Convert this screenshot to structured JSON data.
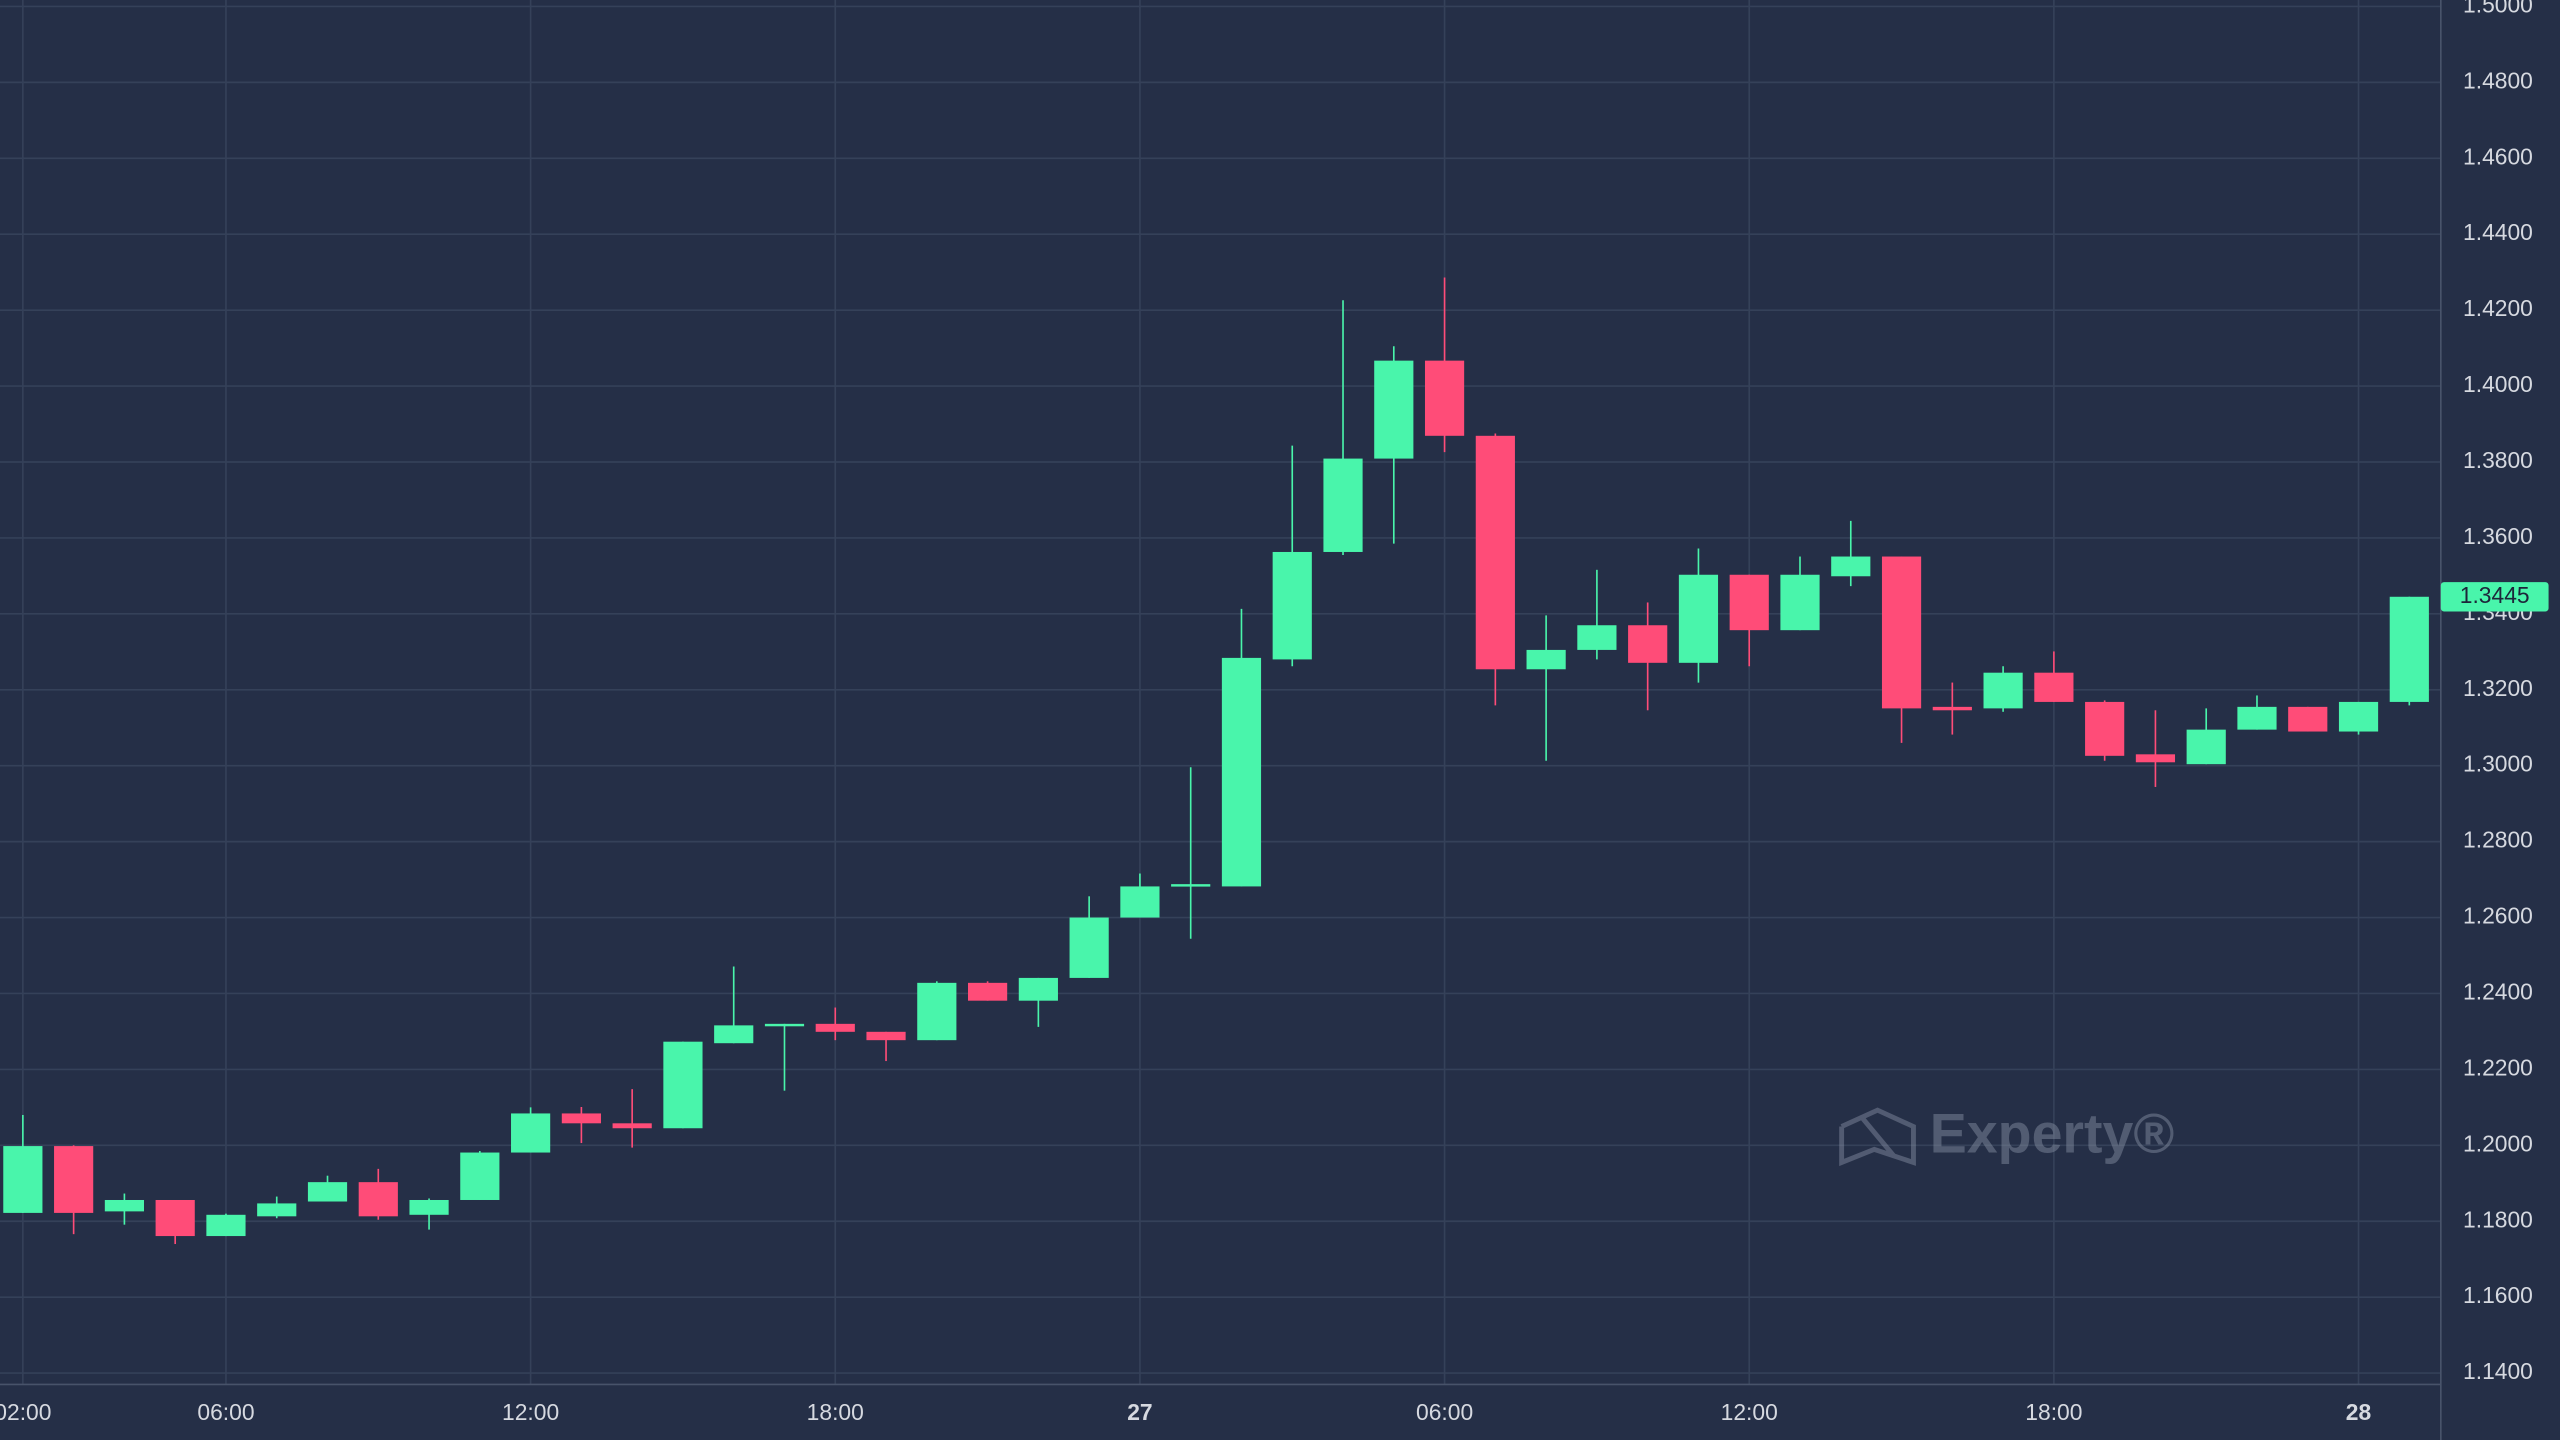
{
  "chart_data": {
    "type": "candlestick",
    "categories": [
      "02:00",
      null,
      null,
      null,
      "06:00",
      null,
      null,
      null,
      null,
      null,
      "12:00",
      null,
      null,
      null,
      null,
      null,
      "18:00",
      null,
      null,
      null,
      null,
      null,
      "27",
      null,
      null,
      null,
      null,
      null,
      "06:00",
      null,
      null,
      null,
      null,
      null,
      "12:00",
      null,
      null,
      null,
      null,
      null,
      "18:00",
      null,
      null,
      null,
      null,
      null,
      "28",
      null
    ],
    "open": [
      1.1822,
      1.1998,
      1.1826,
      1.1856,
      1.1761,
      1.1813,
      1.1852,
      1.1903,
      1.1817,
      1.1856,
      1.1981,
      1.2084,
      1.2058,
      1.2045,
      1.2269,
      1.2316,
      1.232,
      1.2299,
      1.2277,
      1.2428,
      1.2381,
      1.2441,
      1.26,
      1.2682,
      1.2682,
      1.328,
      1.3563,
      1.3809,
      1.4067,
      1.3869,
      1.3254,
      1.3305,
      1.337,
      1.3271,
      1.3503,
      1.3357,
      1.3499,
      1.3551,
      1.3155,
      1.3151,
      1.3245,
      1.3168,
      1.303,
      1.3004,
      1.3095,
      1.3155,
      1.309,
      1.3168
    ],
    "high": [
      1.208,
      1.2,
      1.1873,
      1.1856,
      1.182,
      1.1865,
      1.192,
      1.1938,
      1.186,
      1.1985,
      1.21,
      1.2101,
      1.2148,
      1.2273,
      1.2471,
      1.232,
      1.2363,
      1.2299,
      1.2432,
      1.2432,
      1.2441,
      1.2656,
      1.2716,
      1.2996,
      1.3413,
      1.3843,
      1.4226,
      1.4105,
      1.4286,
      1.3875,
      1.3396,
      1.3516,
      1.343,
      1.3572,
      1.3503,
      1.3551,
      1.3645,
      1.3551,
      1.3219,
      1.3262,
      1.3301,
      1.3172,
      1.3146,
      1.3151,
      1.3185,
      1.3155,
      1.3168,
      1.3445
    ],
    "low": [
      1.1822,
      1.1766,
      1.1791,
      1.174,
      1.1761,
      1.1808,
      1.1852,
      1.1804,
      1.1778,
      1.1856,
      1.1981,
      1.2006,
      1.1994,
      1.2045,
      1.2269,
      1.2144,
      1.2277,
      1.2222,
      1.2277,
      1.2381,
      1.2312,
      1.2441,
      1.26,
      1.2544,
      1.2682,
      1.3262,
      1.3555,
      1.3585,
      1.3826,
      1.3159,
      1.3013,
      1.328,
      1.3146,
      1.3219,
      1.3262,
      1.3357,
      1.3473,
      1.306,
      1.3082,
      1.3142,
      1.3168,
      1.3013,
      1.2944,
      1.3004,
      1.3095,
      1.309,
      1.3082,
      1.3159
    ],
    "close": [
      1.1998,
      1.1822,
      1.1856,
      1.1761,
      1.1817,
      1.1847,
      1.1903,
      1.1813,
      1.1856,
      1.1981,
      1.2084,
      1.2058,
      1.2045,
      1.2273,
      1.2316,
      1.232,
      1.2299,
      1.2277,
      1.2428,
      1.2381,
      1.2441,
      1.26,
      1.2682,
      1.2688,
      1.3284,
      1.3563,
      1.3809,
      1.4067,
      1.3869,
      1.3254,
      1.3305,
      1.337,
      1.3271,
      1.3503,
      1.3357,
      1.3503,
      1.3551,
      1.3151,
      1.3146,
      1.3245,
      1.3168,
      1.3026,
      1.3009,
      1.3095,
      1.3155,
      1.309,
      1.3168,
      1.3445
    ],
    "up_color": "#49f5ab",
    "down_color": "#ff4c78",
    "last_label": "1.3445",
    "watermark": "Experty®",
    "ylim": [
      1.137,
      1.5017
    ],
    "yticks": [
      {
        "value": 1.14,
        "label": "1.1400"
      },
      {
        "value": 1.16,
        "label": "1.1600"
      },
      {
        "value": 1.18,
        "label": "1.1800"
      },
      {
        "value": 1.2,
        "label": "1.2000"
      },
      {
        "value": 1.22,
        "label": "1.2200"
      },
      {
        "value": 1.24,
        "label": "1.2400"
      },
      {
        "value": 1.26,
        "label": "1.2600"
      },
      {
        "value": 1.28,
        "label": "1.2800"
      },
      {
        "value": 1.3,
        "label": "1.3000"
      },
      {
        "value": 1.32,
        "label": "1.3200"
      },
      {
        "value": 1.34,
        "label": "1.3400"
      },
      {
        "value": 1.36,
        "label": "1.3600"
      },
      {
        "value": 1.38,
        "label": "1.3800"
      },
      {
        "value": 1.4,
        "label": "1.4000"
      },
      {
        "value": 1.42,
        "label": "1.4200"
      },
      {
        "value": 1.44,
        "label": "1.4400"
      },
      {
        "value": 1.46,
        "label": "1.4600"
      },
      {
        "value": 1.48,
        "label": "1.4800"
      },
      {
        "value": 1.5,
        "label": "1.5000"
      }
    ],
    "grid": true
  }
}
